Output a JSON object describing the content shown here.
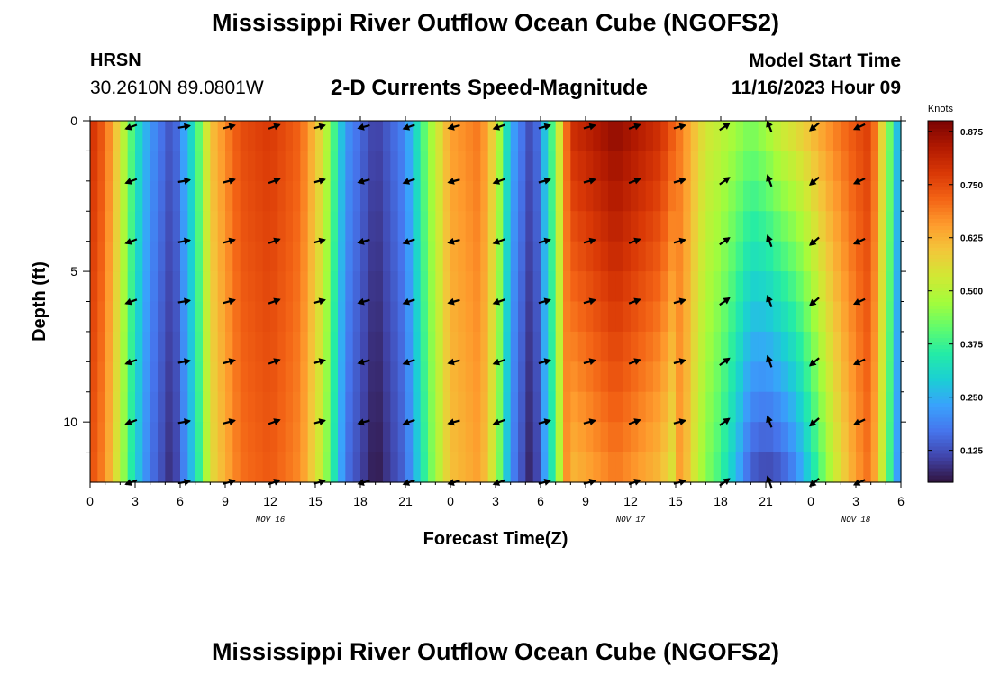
{
  "header": {
    "title": "Mississippi River Outflow Ocean Cube (NGOFS2)",
    "station_name": "HRSN",
    "station_coords": "30.2610N  89.0801W",
    "subtitle": "2-D Currents Speed-Magnitude",
    "model_start_label": "Model Start Time",
    "model_start_time": "11/16/2023 Hour 09"
  },
  "footer": {
    "title": "Mississippi River Outflow Ocean Cube (NGOFS2)"
  },
  "chart_data": {
    "type": "heatmap",
    "title": "2-D Currents Speed-Magnitude",
    "xlabel": "Forecast Time(Z)",
    "ylabel": "Depth (ft)",
    "x_tick_labels": [
      "0",
      "3",
      "6",
      "9",
      "12",
      "15",
      "18",
      "21",
      "0",
      "3",
      "6",
      "9",
      "12",
      "15",
      "18",
      "21",
      "0",
      "3",
      "6"
    ],
    "x_range_hours": [
      0,
      54
    ],
    "date_labels": [
      {
        "text": "NOV 16",
        "hour": 12
      },
      {
        "text": "NOV 17",
        "hour": 36
      },
      {
        "text": "NOV 18",
        "hour": 51
      }
    ],
    "y_tick_labels": [
      "0",
      "5",
      "10"
    ],
    "y_tick_values": [
      0,
      5,
      10
    ],
    "ylim": [
      0,
      12
    ],
    "y_inverted": true,
    "colorbar": {
      "unit": "Knots",
      "range": [
        0.05,
        0.9
      ],
      "tick_values": [
        0.125,
        0.25,
        0.375,
        0.5,
        0.625,
        0.75,
        0.875
      ],
      "tick_labels": [
        "0.125",
        "0.250",
        "0.375",
        "0.500",
        "0.625",
        "0.750",
        "0.875"
      ],
      "colors": [
        "#30123b",
        "#4145ab",
        "#4675ed",
        "#39a2fc",
        "#1bcfd4",
        "#24eca6",
        "#61fc6c",
        "#a4fc3b",
        "#d1e834",
        "#f3c63a",
        "#fe9b2d",
        "#f36315",
        "#d93806",
        "#b11901",
        "#7a0403"
      ]
    },
    "surface_speed_profile_knots": [
      {
        "hour": 0,
        "speed": 0.8
      },
      {
        "hour": 1,
        "speed": 0.72
      },
      {
        "hour": 2,
        "speed": 0.55
      },
      {
        "hour": 3,
        "speed": 0.35
      },
      {
        "hour": 4,
        "speed": 0.22
      },
      {
        "hour": 5.5,
        "speed": 0.12
      },
      {
        "hour": 7,
        "speed": 0.35
      },
      {
        "hour": 8,
        "speed": 0.6
      },
      {
        "hour": 10,
        "speed": 0.75
      },
      {
        "hour": 12,
        "speed": 0.78
      },
      {
        "hour": 14,
        "speed": 0.72
      },
      {
        "hour": 15.5,
        "speed": 0.55
      },
      {
        "hour": 17,
        "speed": 0.22
      },
      {
        "hour": 19,
        "speed": 0.1
      },
      {
        "hour": 21,
        "speed": 0.2
      },
      {
        "hour": 22.5,
        "speed": 0.45
      },
      {
        "hour": 24,
        "speed": 0.65
      },
      {
        "hour": 26,
        "speed": 0.7
      },
      {
        "hour": 27,
        "speed": 0.55
      },
      {
        "hour": 28,
        "speed": 0.25
      },
      {
        "hour": 29.5,
        "speed": 0.1
      },
      {
        "hour": 31,
        "speed": 0.45
      },
      {
        "hour": 32,
        "speed": 0.8
      },
      {
        "hour": 35,
        "speed": 0.88
      },
      {
        "hour": 38,
        "speed": 0.8
      },
      {
        "hour": 41,
        "speed": 0.55
      },
      {
        "hour": 44,
        "speed": 0.5
      },
      {
        "hour": 46,
        "speed": 0.62
      },
      {
        "hour": 49,
        "speed": 0.7
      },
      {
        "hour": 52,
        "speed": 0.78
      },
      {
        "hour": 53,
        "speed": 0.5
      },
      {
        "hour": 54,
        "speed": 0.2
      }
    ],
    "vector_hours": [
      2.75,
      6.25,
      9.25,
      12.25,
      15.25,
      18.25,
      21.25,
      24.25,
      27.25,
      30.25,
      33.25,
      36.25,
      39.25,
      42.25,
      45.25,
      48.25,
      51.25
    ],
    "vector_depths_ft": [
      0.2,
      2,
      4,
      6,
      8,
      10,
      12
    ],
    "vector_directions_deg": [
      200,
      10,
      15,
      20,
      15,
      195,
      200,
      195,
      200,
      15,
      15,
      20,
      15,
      35,
      110,
      220,
      205
    ]
  }
}
